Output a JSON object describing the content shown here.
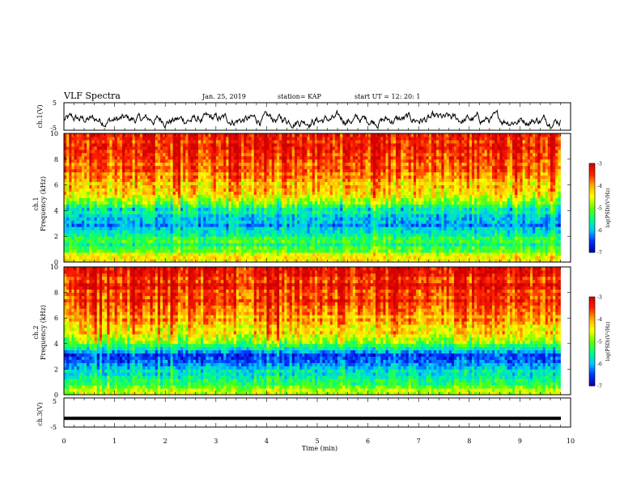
{
  "header": {
    "title": "VLF Spectra",
    "date": "Jan. 25, 2019",
    "station": "station= KAP",
    "start": "start  UT =   12: 20: 1"
  },
  "colors": {
    "waveform": "#000000",
    "colormap": [
      "#0000aa",
      "#0030ff",
      "#00c8ff",
      "#00ff80",
      "#66ff00",
      "#ffff00",
      "#ffb000",
      "#ff2000",
      "#d00000"
    ]
  },
  "chart_data": [
    {
      "type": "line",
      "ylabel": "ch.1(V)",
      "ylim": [
        -5,
        5
      ],
      "yticks": [
        "5",
        "-5"
      ],
      "xlim": [
        0,
        10
      ],
      "description_of_series": "noisy waveform",
      "y_mean": -1.2,
      "y_range": [
        -4.2,
        4.5
      ]
    },
    {
      "type": "heatmap",
      "ylabel": "ch.1\nFrequency  (kHz)",
      "ylim": [
        0,
        10
      ],
      "yticks": [
        "0",
        "2",
        "4",
        "6",
        "8",
        "10"
      ],
      "xlim": [
        0,
        10
      ],
      "x_end": 9.8,
      "colorbar": {
        "label": "log(PSD)(V²/Hz)",
        "range": [
          -7,
          -3
        ],
        "ticks": [
          "-3",
          "-4",
          "-5",
          "-6",
          "-7"
        ]
      },
      "freq_profile_kHz": [
        [
          0.0,
          -4.2
        ],
        [
          0.5,
          -4.6
        ],
        [
          1.0,
          -5.3
        ],
        [
          1.5,
          -5.4
        ],
        [
          2.0,
          -5.5
        ],
        [
          2.5,
          -5.9
        ],
        [
          3.0,
          -6.2
        ],
        [
          3.5,
          -5.8
        ],
        [
          4.0,
          -5.6
        ],
        [
          4.5,
          -5.2
        ],
        [
          5.0,
          -4.6
        ],
        [
          5.5,
          -4.3
        ],
        [
          6.0,
          -4.1
        ],
        [
          7.0,
          -3.8
        ],
        [
          8.0,
          -3.6
        ],
        [
          9.0,
          -3.5
        ],
        [
          10.0,
          -3.5
        ]
      ]
    },
    {
      "type": "heatmap",
      "ylabel": "ch.2\nFrequency  (kHz)",
      "ylim": [
        0,
        10
      ],
      "yticks": [
        "0",
        "2",
        "4",
        "6",
        "8",
        "10"
      ],
      "xlim": [
        0,
        10
      ],
      "x_end": 9.8,
      "colorbar": {
        "label": "log(PSD)(V²/Hz)",
        "range": [
          -7,
          -3
        ],
        "ticks": [
          "-3",
          "-4",
          "-5",
          "-6",
          "-7"
        ]
      },
      "freq_profile_kHz": [
        [
          0.0,
          -4.5
        ],
        [
          0.5,
          -5.0
        ],
        [
          1.0,
          -5.5
        ],
        [
          1.5,
          -5.7
        ],
        [
          2.0,
          -6.0
        ],
        [
          2.5,
          -6.4
        ],
        [
          3.0,
          -6.5
        ],
        [
          3.5,
          -6.0
        ],
        [
          4.0,
          -5.3
        ],
        [
          4.5,
          -4.7
        ],
        [
          5.0,
          -4.3
        ],
        [
          6.0,
          -4.0
        ],
        [
          7.0,
          -3.7
        ],
        [
          8.0,
          -3.5
        ],
        [
          9.0,
          -3.4
        ],
        [
          10.0,
          -3.4
        ]
      ]
    },
    {
      "type": "line",
      "ylabel": "ch.3(V)",
      "ylim": [
        -5,
        5
      ],
      "yticks": [
        "5",
        "0",
        "-5"
      ],
      "xlim": [
        0,
        10
      ],
      "constant_value": -2,
      "xlabel": "Time  (min)",
      "xticks": [
        "0",
        "1",
        "2",
        "3",
        "4",
        "5",
        "6",
        "7",
        "8",
        "9",
        "10"
      ]
    }
  ]
}
